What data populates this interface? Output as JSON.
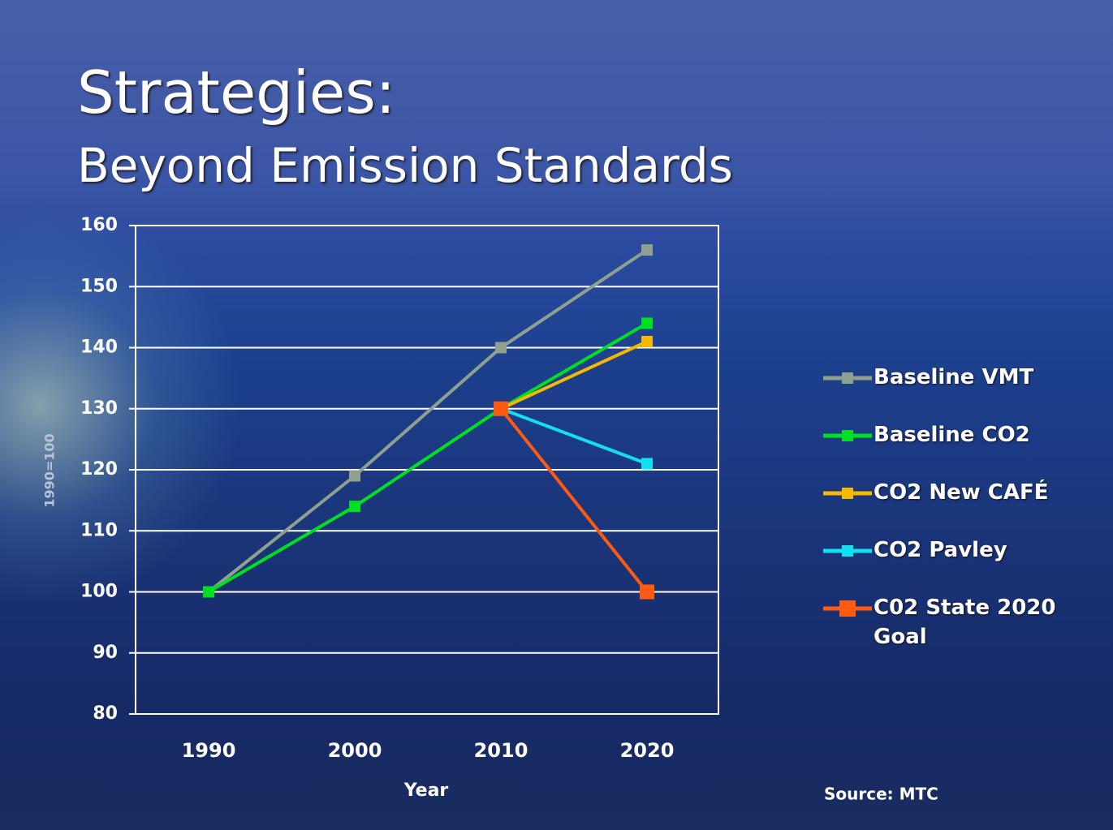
{
  "chart_data": {
    "type": "line",
    "title": "Strategies:",
    "subtitle": "Beyond Emission Standards",
    "x_label": "Year",
    "y_label": "1990=100",
    "source": "Source: MTC",
    "categories": [
      "1990",
      "2000",
      "2010",
      "2020"
    ],
    "series": [
      {
        "name": "Baseline VMT",
        "color": "#8fa08f",
        "values": [
          100,
          119,
          140,
          156
        ]
      },
      {
        "name": "Baseline CO2",
        "color": "#00e020",
        "values": [
          100,
          114,
          130,
          144
        ]
      },
      {
        "name": "CO2 New CAFÉ",
        "color": "#f5b800",
        "values": [
          null,
          null,
          130,
          141
        ]
      },
      {
        "name": "CO2 Pavley",
        "color": "#10e0f0",
        "values": [
          null,
          null,
          130,
          121
        ]
      },
      {
        "name": "C02 State 2020 Goal",
        "color": "#ff5a10",
        "values": [
          null,
          null,
          130,
          100
        ]
      }
    ],
    "ylim": [
      80,
      160
    ],
    "yticks": [
      80,
      90,
      100,
      110,
      120,
      130,
      140,
      150,
      160
    ],
    "grid": true,
    "legend": "right"
  }
}
